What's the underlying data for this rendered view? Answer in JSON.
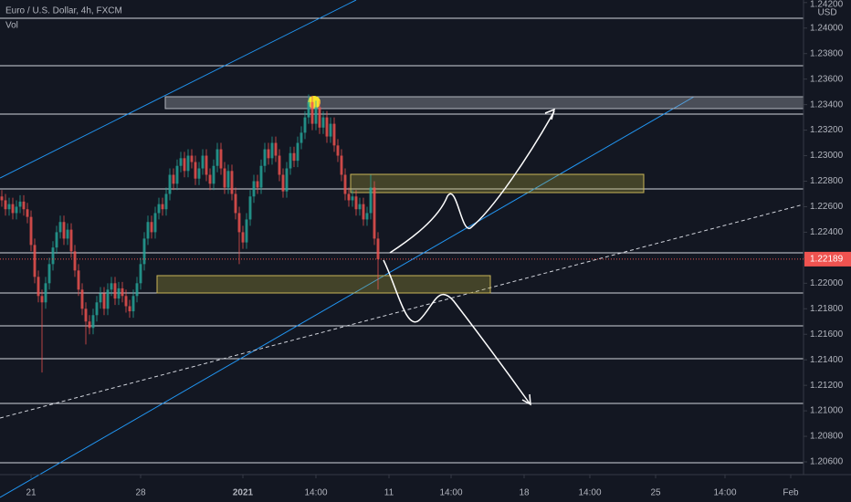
{
  "chart_data": {
    "type": "candlestick",
    "title": "Euro / U.S. Dollar, 4h, FXCM",
    "indicator": "Vol",
    "currency": "USD",
    "colors": {
      "up": "#26a69a",
      "down": "#ef5350"
    },
    "x": [
      0,
      1,
      2,
      3,
      4,
      5,
      6,
      7,
      8,
      9,
      10,
      11,
      12,
      13,
      14,
      15,
      16,
      17,
      18,
      19,
      20,
      21,
      22,
      23,
      24,
      25,
      26,
      27,
      28,
      29,
      30,
      31,
      32,
      33,
      34,
      35,
      36,
      37,
      38,
      39,
      40,
      41,
      42,
      43,
      44,
      45,
      46,
      47,
      48,
      49,
      50,
      51,
      52,
      53,
      54,
      55,
      56,
      57,
      58,
      59,
      60,
      61,
      62,
      63,
      64,
      65,
      66,
      67,
      68,
      69,
      70,
      71,
      72,
      73,
      74,
      75,
      76,
      77,
      78,
      79,
      80,
      81,
      82,
      83,
      84,
      85,
      86,
      87,
      88,
      89,
      90,
      91,
      92,
      93,
      94,
      95,
      96,
      97,
      98,
      99,
      100,
      101,
      102,
      103
    ],
    "open": [
      1.2268,
      1.2265,
      1.2258,
      1.2262,
      1.2255,
      1.226,
      1.2264,
      1.2258,
      1.2252,
      1.223,
      1.2205,
      1.219,
      1.2185,
      1.22,
      1.2215,
      1.2228,
      1.224,
      1.2248,
      1.2235,
      1.2242,
      1.2225,
      1.221,
      1.2195,
      1.218,
      1.217,
      1.2165,
      1.2175,
      1.2185,
      1.2192,
      1.218,
      1.2195,
      1.22,
      1.2188,
      1.2196,
      1.219,
      1.2182,
      1.2178,
      1.219,
      1.22,
      1.2215,
      1.2235,
      1.2248,
      1.224,
      1.2255,
      1.2262,
      1.2258,
      1.227,
      1.2285,
      1.2278,
      1.2292,
      1.2298,
      1.2288,
      1.23,
      1.2295,
      1.2282,
      1.229,
      1.23,
      1.2285,
      1.2278,
      1.2292,
      1.2305,
      1.229,
      1.2275,
      1.2288,
      1.227,
      1.2255,
      1.224,
      1.2232,
      1.225,
      1.2268,
      1.228,
      1.2275,
      1.2292,
      1.2305,
      1.2298,
      1.231,
      1.23,
      1.2285,
      1.2272,
      1.229,
      1.2302,
      1.2296,
      1.231,
      1.2318,
      1.233,
      1.2342,
      1.2325,
      1.2338,
      1.2322,
      1.233,
      1.2315,
      1.2325,
      1.2308,
      1.23,
      1.2285,
      1.227,
      1.2265,
      1.2268,
      1.2258,
      1.2262,
      1.225,
      1.2255,
      1.2275,
      1.2235
    ],
    "high": [
      1.2273,
      1.227,
      1.2267,
      1.2267,
      1.2265,
      1.2269,
      1.2269,
      1.2263,
      1.2257,
      1.2235,
      1.221,
      1.2195,
      1.2205,
      1.222,
      1.2233,
      1.2245,
      1.2253,
      1.2253,
      1.2247,
      1.2247,
      1.223,
      1.2215,
      1.22,
      1.2185,
      1.2175,
      1.218,
      1.219,
      1.2197,
      1.2197,
      1.22,
      1.2205,
      1.2205,
      1.2201,
      1.2201,
      1.2195,
      1.2187,
      1.2195,
      1.2205,
      1.222,
      1.224,
      1.2253,
      1.2253,
      1.226,
      1.2267,
      1.2267,
      1.2275,
      1.229,
      1.229,
      1.2297,
      1.2303,
      1.2303,
      1.2305,
      1.2305,
      1.23,
      1.2295,
      1.2305,
      1.2305,
      1.229,
      1.2297,
      1.231,
      1.231,
      1.2295,
      1.2293,
      1.2293,
      1.2275,
      1.226,
      1.2245,
      1.2255,
      1.2273,
      1.2285,
      1.2285,
      1.2297,
      1.231,
      1.231,
      1.2315,
      1.2315,
      1.2305,
      1.229,
      1.2295,
      1.2307,
      1.2307,
      1.2315,
      1.2323,
      1.2335,
      1.2348,
      1.2347,
      1.2343,
      1.2343,
      1.2335,
      1.2335,
      1.233,
      1.233,
      1.2313,
      1.2305,
      1.229,
      1.2275,
      1.2273,
      1.2273,
      1.2267,
      1.2267,
      1.226,
      1.2285,
      1.228,
      1.224
    ],
    "low": [
      1.226,
      1.2253,
      1.2253,
      1.225,
      1.225,
      1.2255,
      1.2253,
      1.2247,
      1.2225,
      1.22,
      1.2185,
      1.213,
      1.218,
      1.2195,
      1.221,
      1.2223,
      1.2235,
      1.223,
      1.223,
      1.222,
      1.2205,
      1.219,
      1.2175,
      1.2152,
      1.216,
      1.216,
      1.217,
      1.218,
      1.2175,
      1.2175,
      1.219,
      1.2183,
      1.2183,
      1.2185,
      1.2177,
      1.2173,
      1.2173,
      1.2185,
      1.2195,
      1.221,
      1.223,
      1.2235,
      1.2235,
      1.225,
      1.2253,
      1.2253,
      1.2265,
      1.2273,
      1.2273,
      1.2287,
      1.2283,
      1.2283,
      1.229,
      1.2277,
      1.2277,
      1.2285,
      1.228,
      1.2273,
      1.2273,
      1.2287,
      1.2285,
      1.227,
      1.227,
      1.2265,
      1.225,
      1.2215,
      1.2227,
      1.2227,
      1.2245,
      1.2263,
      1.227,
      1.227,
      1.2287,
      1.2293,
      1.2293,
      1.2295,
      1.228,
      1.2267,
      1.2267,
      1.2285,
      1.2291,
      1.2291,
      1.2305,
      1.2313,
      1.2325,
      1.232,
      1.232,
      1.2317,
      1.2317,
      1.231,
      1.231,
      1.2303,
      1.2295,
      1.228,
      1.2265,
      1.226,
      1.226,
      1.2253,
      1.2253,
      1.2245,
      1.2245,
      1.225,
      1.223,
      1.2195
    ],
    "close": [
      1.2265,
      1.2258,
      1.2262,
      1.2255,
      1.226,
      1.2264,
      1.2258,
      1.2252,
      1.223,
      1.2205,
      1.219,
      1.2185,
      1.22,
      1.2215,
      1.2228,
      1.224,
      1.2248,
      1.2235,
      1.2242,
      1.2225,
      1.221,
      1.2195,
      1.218,
      1.217,
      1.2165,
      1.2175,
      1.2185,
      1.2192,
      1.218,
      1.2195,
      1.22,
      1.2188,
      1.2196,
      1.219,
      1.2182,
      1.2178,
      1.219,
      1.22,
      1.2215,
      1.2235,
      1.2248,
      1.224,
      1.2255,
      1.2262,
      1.2258,
      1.227,
      1.2285,
      1.2278,
      1.2292,
      1.2298,
      1.2288,
      1.23,
      1.2295,
      1.2282,
      1.229,
      1.23,
      1.2285,
      1.2278,
      1.2292,
      1.2305,
      1.229,
      1.2275,
      1.2288,
      1.227,
      1.2255,
      1.224,
      1.2232,
      1.225,
      1.2268,
      1.228,
      1.2275,
      1.2292,
      1.2305,
      1.2298,
      1.231,
      1.23,
      1.2285,
      1.2272,
      1.229,
      1.2302,
      1.2296,
      1.231,
      1.2318,
      1.233,
      1.2342,
      1.2325,
      1.2338,
      1.2322,
      1.233,
      1.2315,
      1.2325,
      1.2308,
      1.23,
      1.2285,
      1.227,
      1.2265,
      1.2268,
      1.2258,
      1.2262,
      1.225,
      1.2255,
      1.2275,
      1.2235,
      1.22189
    ],
    "last_price": 1.22189,
    "xlim": [
      -0.5,
      219.5
    ],
    "xticks": [
      {
        "value": 8,
        "label": "21"
      },
      {
        "value": 38,
        "label": "28"
      },
      {
        "value": 66,
        "label": "2021"
      },
      {
        "value": 86,
        "label": "14:00"
      },
      {
        "value": 106,
        "label": "11"
      },
      {
        "value": 123,
        "label": "14:00"
      },
      {
        "value": 143,
        "label": "18"
      },
      {
        "value": 161,
        "label": "14:00"
      },
      {
        "value": 179,
        "label": "25"
      },
      {
        "value": 198,
        "label": "14:00"
      },
      {
        "value": 216,
        "label": "Feb"
      }
    ],
    "ylim": [
      1.205,
      1.2422
    ],
    "yticks": [
      {
        "value": 1.242,
        "label": "1.24200"
      },
      {
        "value": 1.24,
        "label": "1.24000"
      },
      {
        "value": 1.238,
        "label": "1.23800"
      },
      {
        "value": 1.236,
        "label": "1.23600"
      },
      {
        "value": 1.234,
        "label": "1.23400"
      },
      {
        "value": 1.232,
        "label": "1.23200"
      },
      {
        "value": 1.23,
        "label": "1.23000"
      },
      {
        "value": 1.228,
        "label": "1.22800"
      },
      {
        "value": 1.226,
        "label": "1.22600"
      },
      {
        "value": 1.224,
        "label": "1.22400"
      },
      {
        "value": 1.222,
        "label": "1.22200"
      },
      {
        "value": 1.22,
        "label": "1.22000"
      },
      {
        "value": 1.218,
        "label": "1.21800"
      },
      {
        "value": 1.216,
        "label": "1.21600"
      },
      {
        "value": 1.214,
        "label": "1.21400"
      },
      {
        "value": 1.212,
        "label": "1.21200"
      },
      {
        "value": 1.21,
        "label": "1.21000"
      },
      {
        "value": 1.208,
        "label": "1.20800"
      },
      {
        "value": 1.206,
        "label": "1.20600"
      }
    ]
  }
}
